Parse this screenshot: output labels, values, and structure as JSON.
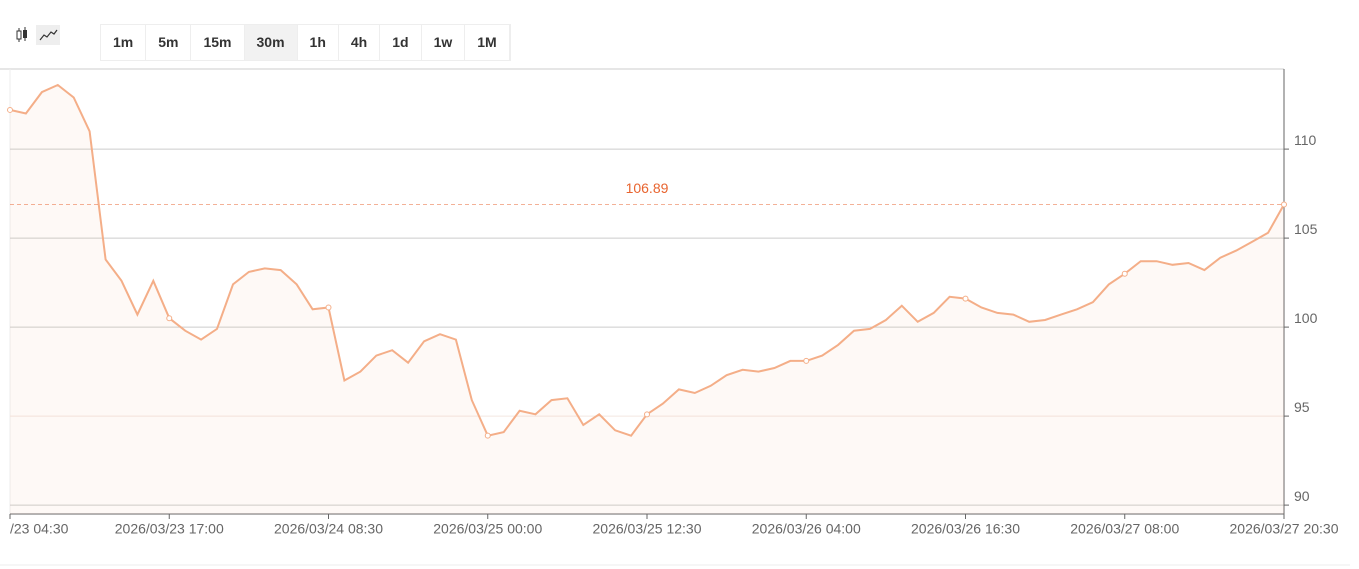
{
  "toolbar": {
    "intervals": [
      "1m",
      "5m",
      "15m",
      "30m",
      "1h",
      "4h",
      "1d",
      "1w",
      "1M"
    ],
    "selected": "30m"
  },
  "chart_data": {
    "type": "line",
    "color": "#f4ae88",
    "categories": [
      "/23 04:30",
      null,
      null,
      null,
      null,
      null,
      null,
      null,
      null,
      null,
      "2026/03/23 17:00",
      null,
      null,
      null,
      null,
      null,
      null,
      null,
      null,
      null,
      "2026/03/24 08:30",
      null,
      null,
      null,
      null,
      null,
      null,
      null,
      null,
      null,
      "2026/03/25 00:00",
      null,
      null,
      null,
      null,
      null,
      null,
      null,
      null,
      null,
      "2026/03/25 12:30",
      null,
      null,
      null,
      null,
      null,
      null,
      null,
      null,
      null,
      "2026/03/26 04:00",
      null,
      null,
      null,
      null,
      null,
      null,
      null,
      null,
      null,
      "2026/03/26 16:30",
      null,
      null,
      null,
      null,
      null,
      null,
      null,
      null,
      null,
      "2026/03/27 08:00",
      null,
      null,
      null,
      null,
      null,
      null,
      null,
      null,
      null,
      "2026/03/27 20:30"
    ],
    "values": [
      112.2,
      112.0,
      113.2,
      113.6,
      112.9,
      111.0,
      103.8,
      102.6,
      100.7,
      102.6,
      100.5,
      99.8,
      99.3,
      99.9,
      102.4,
      103.1,
      103.3,
      103.2,
      102.4,
      101.0,
      101.1,
      97.0,
      97.5,
      98.4,
      98.7,
      98.0,
      99.2,
      99.6,
      99.3,
      95.9,
      93.9,
      94.1,
      95.3,
      95.1,
      95.9,
      96.0,
      94.5,
      95.1,
      94.2,
      93.9,
      95.1,
      95.7,
      96.5,
      96.3,
      96.7,
      97.3,
      97.6,
      97.5,
      97.7,
      98.1,
      98.1,
      98.4,
      99.0,
      99.8,
      99.9,
      100.4,
      101.2,
      100.3,
      100.8,
      101.7,
      101.6,
      101.1,
      100.8,
      100.7,
      100.3,
      100.4,
      100.7,
      101.0,
      101.4,
      102.4,
      103.0,
      103.7,
      103.7,
      103.5,
      103.6,
      103.2,
      103.9,
      104.3,
      104.8,
      105.3,
      106.89
    ],
    "reference_line": {
      "value": 106.89,
      "color": "#e8642f"
    },
    "ylim": [
      89.5,
      114.5
    ],
    "yticks": [
      90,
      95,
      100,
      105,
      110
    ],
    "grid": true
  }
}
